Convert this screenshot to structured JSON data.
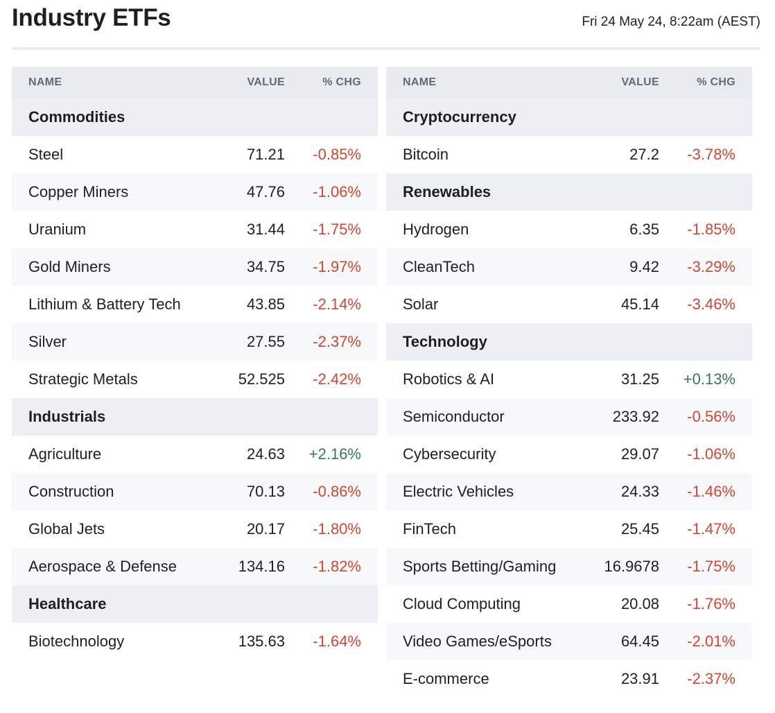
{
  "header": {
    "title": "Industry ETFs",
    "timestamp": "Fri 24 May 24, 8:22am (AEST)"
  },
  "columns": {
    "name": "NAME",
    "value": "VALUE",
    "chg": "% CHG"
  },
  "colors": {
    "negative": "#d2452f",
    "positive": "#2f7d4f",
    "header_bg": "#e8ebef",
    "group_bg": "#eceff3",
    "stripe_bg": "#f7f8fa"
  },
  "left_table": {
    "groups": [
      {
        "name": "Commodities",
        "rows": [
          {
            "name": "Steel",
            "value": "71.21",
            "chg": "-0.85%"
          },
          {
            "name": "Copper Miners",
            "value": "47.76",
            "chg": "-1.06%"
          },
          {
            "name": "Uranium",
            "value": "31.44",
            "chg": "-1.75%"
          },
          {
            "name": "Gold Miners",
            "value": "34.75",
            "chg": "-1.97%"
          },
          {
            "name": "Lithium & Battery Tech",
            "value": "43.85",
            "chg": "-2.14%"
          },
          {
            "name": "Silver",
            "value": "27.55",
            "chg": "-2.37%"
          },
          {
            "name": "Strategic Metals",
            "value": "52.525",
            "chg": "-2.42%"
          }
        ]
      },
      {
        "name": "Industrials",
        "rows": [
          {
            "name": "Agriculture",
            "value": "24.63",
            "chg": "+2.16%"
          },
          {
            "name": "Construction",
            "value": "70.13",
            "chg": "-0.86%"
          },
          {
            "name": "Global Jets",
            "value": "20.17",
            "chg": "-1.80%"
          },
          {
            "name": "Aerospace & Defense",
            "value": "134.16",
            "chg": "-1.82%"
          }
        ]
      },
      {
        "name": "Healthcare",
        "rows": [
          {
            "name": "Biotechnology",
            "value": "135.63",
            "chg": "-1.64%"
          }
        ]
      }
    ]
  },
  "right_table": {
    "groups": [
      {
        "name": "Cryptocurrency",
        "rows": [
          {
            "name": "Bitcoin",
            "value": "27.2",
            "chg": "-3.78%"
          }
        ]
      },
      {
        "name": "Renewables",
        "rows": [
          {
            "name": "Hydrogen",
            "value": "6.35",
            "chg": "-1.85%"
          },
          {
            "name": "CleanTech",
            "value": "9.42",
            "chg": "-3.29%"
          },
          {
            "name": "Solar",
            "value": "45.14",
            "chg": "-3.46%"
          }
        ]
      },
      {
        "name": "Technology",
        "rows": [
          {
            "name": "Robotics & AI",
            "value": "31.25",
            "chg": "+0.13%"
          },
          {
            "name": "Semiconductor",
            "value": "233.92",
            "chg": "-0.56%"
          },
          {
            "name": "Cybersecurity",
            "value": "29.07",
            "chg": "-1.06%"
          },
          {
            "name": "Electric Vehicles",
            "value": "24.33",
            "chg": "-1.46%"
          },
          {
            "name": "FinTech",
            "value": "25.45",
            "chg": "-1.47%"
          },
          {
            "name": "Sports Betting/Gaming",
            "value": "16.9678",
            "chg": "-1.75%"
          },
          {
            "name": "Cloud Computing",
            "value": "20.08",
            "chg": "-1.76%"
          },
          {
            "name": "Video Games/eSports",
            "value": "64.45",
            "chg": "-2.01%"
          },
          {
            "name": "E-commerce",
            "value": "23.91",
            "chg": "-2.37%"
          }
        ]
      }
    ]
  }
}
